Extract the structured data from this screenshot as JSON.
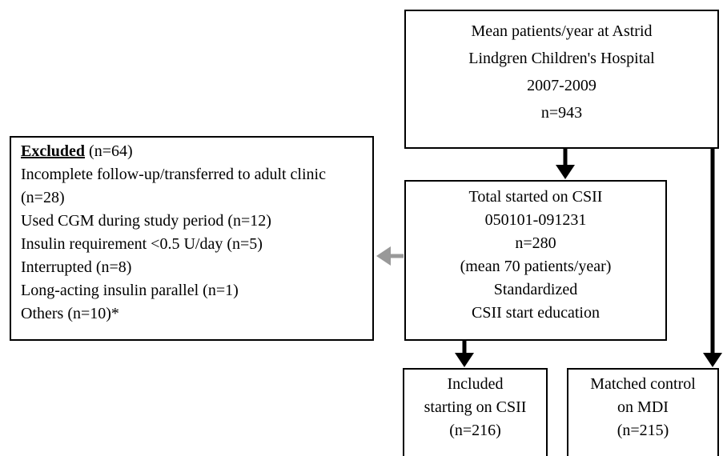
{
  "nodes": {
    "source": {
      "lines": [
        "Mean patients/year at Astrid",
        "Lindgren Children's Hospital",
        "2007-2009",
        "n=943"
      ]
    },
    "started": {
      "lines": [
        "Total started on CSII",
        "050101-091231",
        "n=280",
        "(mean 70 patients/year)",
        "Standardized",
        "CSII start education"
      ]
    },
    "included": {
      "lines": [
        "Included",
        "starting on CSII",
        "(n=216)"
      ]
    },
    "control": {
      "lines": [
        "Matched control",
        "on MDI",
        "(n=215)"
      ]
    }
  },
  "excluded": {
    "heading": "Excluded",
    "count": "(n=64)",
    "items": [
      "Incomplete follow-up/transferred to adult clinic (n=28)",
      "Used CGM during study period (n=12)",
      "Insulin requirement <0.5 U/day (n=5)",
      "Interrupted (n=8)",
      "Long-acting insulin parallel (n=1)",
      "Others (n=10)*"
    ]
  }
}
